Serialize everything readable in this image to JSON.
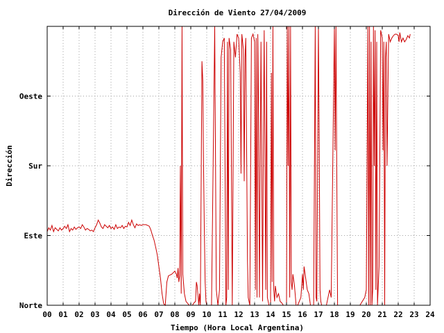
{
  "chart_data": {
    "type": "line",
    "title": "Dirección de Viento 27/04/2009",
    "xlabel": "Tiempo (Hora Local Argentina)",
    "ylabel": "Dirección",
    "xlim": [
      0,
      24
    ],
    "ylim": [
      0,
      360
    ],
    "x_ticks": [
      "00",
      "01",
      "02",
      "03",
      "04",
      "05",
      "06",
      "07",
      "08",
      "09",
      "10",
      "11",
      "12",
      "13",
      "14",
      "15",
      "16",
      "17",
      "18",
      "19",
      "20",
      "21",
      "22",
      "23",
      "24"
    ],
    "y_ticks": [
      {
        "label": "Norte",
        "value": 0
      },
      {
        "label": "Este",
        "value": 90
      },
      {
        "label": "Sur",
        "value": 180
      },
      {
        "label": "Oeste",
        "value": 270
      }
    ],
    "grid": true,
    "colors": {
      "series": "#cc0000",
      "grid": "#a0a0a0",
      "axes": "#000000"
    },
    "series": [
      {
        "points": [
          [
            0.0,
            95
          ],
          [
            0.1,
            100
          ],
          [
            0.2,
            97
          ],
          [
            0.3,
            103
          ],
          [
            0.4,
            95
          ],
          [
            0.5,
            100
          ],
          [
            0.6,
            98
          ],
          [
            0.7,
            96
          ],
          [
            0.8,
            100
          ],
          [
            0.9,
            97
          ],
          [
            1.0,
            99
          ],
          [
            1.1,
            102
          ],
          [
            1.2,
            99
          ],
          [
            1.3,
            104
          ],
          [
            1.4,
            95
          ],
          [
            1.5,
            99
          ],
          [
            1.6,
            97
          ],
          [
            1.7,
            101
          ],
          [
            1.8,
            98
          ],
          [
            1.9,
            100
          ],
          [
            2.0,
            101
          ],
          [
            2.1,
            99
          ],
          [
            2.2,
            104
          ],
          [
            2.3,
            101
          ],
          [
            2.4,
            97
          ],
          [
            2.5,
            99
          ],
          [
            2.6,
            98
          ],
          [
            2.7,
            96
          ],
          [
            2.8,
            97
          ],
          [
            2.9,
            95
          ],
          [
            3.0,
            100
          ],
          [
            3.1,
            104
          ],
          [
            3.2,
            110
          ],
          [
            3.3,
            106
          ],
          [
            3.4,
            101
          ],
          [
            3.5,
            99
          ],
          [
            3.6,
            104
          ],
          [
            3.7,
            102
          ],
          [
            3.8,
            100
          ],
          [
            3.9,
            103
          ],
          [
            4.0,
            99
          ],
          [
            4.1,
            101
          ],
          [
            4.2,
            98
          ],
          [
            4.3,
            104
          ],
          [
            4.4,
            99
          ],
          [
            4.5,
            101
          ],
          [
            4.6,
            100
          ],
          [
            4.7,
            103
          ],
          [
            4.8,
            99
          ],
          [
            4.9,
            102
          ],
          [
            5.0,
            101
          ],
          [
            5.1,
            107
          ],
          [
            5.2,
            103
          ],
          [
            5.3,
            110
          ],
          [
            5.4,
            104
          ],
          [
            5.5,
            100
          ],
          [
            5.6,
            105
          ],
          [
            5.7,
            103
          ],
          [
            5.8,
            104
          ],
          [
            5.9,
            103
          ],
          [
            6.0,
            104
          ],
          [
            6.2,
            104
          ],
          [
            6.4,
            102
          ],
          [
            6.5,
            97
          ],
          [
            6.6,
            90
          ],
          [
            6.7,
            84
          ],
          [
            6.8,
            75
          ],
          [
            6.9,
            65
          ],
          [
            7.0,
            50
          ],
          [
            7.1,
            35
          ],
          [
            7.2,
            15
          ],
          [
            7.3,
            2
          ],
          [
            7.4,
            0
          ],
          [
            7.5,
            30
          ],
          [
            7.6,
            38
          ],
          [
            7.8,
            40
          ],
          [
            8.0,
            44
          ],
          [
            8.1,
            40
          ],
          [
            8.15,
            35
          ],
          [
            8.2,
            48
          ],
          [
            8.25,
            30
          ],
          [
            8.3,
            38
          ],
          [
            8.35,
            180
          ],
          [
            8.4,
            15
          ],
          [
            8.45,
            360
          ],
          [
            8.5,
            40
          ],
          [
            8.6,
            15
          ],
          [
            8.7,
            5
          ],
          [
            8.9,
            0
          ],
          [
            9.0,
            0
          ],
          [
            9.1,
            0
          ],
          [
            9.2,
            3
          ],
          [
            9.3,
            5
          ],
          [
            9.35,
            30
          ],
          [
            9.4,
            25
          ],
          [
            9.5,
            0
          ],
          [
            9.55,
            15
          ],
          [
            9.6,
            0
          ],
          [
            9.7,
            315
          ],
          [
            9.75,
            290
          ],
          [
            9.8,
            180
          ],
          [
            9.85,
            100
          ],
          [
            9.9,
            30
          ],
          [
            9.95,
            5
          ],
          [
            10.0,
            0
          ],
          [
            10.1,
            0
          ],
          [
            10.3,
            0
          ],
          [
            10.5,
            360
          ],
          [
            10.6,
            20
          ],
          [
            10.7,
            0
          ],
          [
            10.8,
            20
          ],
          [
            10.9,
            320
          ],
          [
            11.0,
            340
          ],
          [
            11.1,
            345
          ],
          [
            11.2,
            0
          ],
          [
            11.25,
            10
          ],
          [
            11.3,
            340
          ],
          [
            11.35,
            20
          ],
          [
            11.4,
            345
          ],
          [
            11.5,
            330
          ],
          [
            11.6,
            0
          ],
          [
            11.7,
            340
          ],
          [
            11.8,
            320
          ],
          [
            11.9,
            350
          ],
          [
            12.0,
            345
          ],
          [
            12.1,
            300
          ],
          [
            12.15,
            170
          ],
          [
            12.2,
            350
          ],
          [
            12.3,
            330
          ],
          [
            12.35,
            160
          ],
          [
            12.4,
            320
          ],
          [
            12.45,
            345
          ],
          [
            12.5,
            200
          ],
          [
            12.55,
            60
          ],
          [
            12.6,
            10
          ],
          [
            12.7,
            0
          ],
          [
            12.8,
            345
          ],
          [
            12.9,
            350
          ],
          [
            13.0,
            340
          ],
          [
            13.05,
            20
          ],
          [
            13.1,
            345
          ],
          [
            13.15,
            10
          ],
          [
            13.2,
            350
          ],
          [
            13.25,
            240
          ],
          [
            13.3,
            10
          ],
          [
            13.4,
            340
          ],
          [
            13.5,
            5
          ],
          [
            13.55,
            200
          ],
          [
            13.6,
            355
          ],
          [
            13.7,
            20
          ],
          [
            13.75,
            340
          ],
          [
            13.8,
            10
          ],
          [
            13.9,
            0
          ],
          [
            14.0,
            0
          ],
          [
            14.05,
            300
          ],
          [
            14.1,
            30
          ],
          [
            14.15,
            360
          ],
          [
            14.2,
            20
          ],
          [
            14.25,
            5
          ],
          [
            14.3,
            25
          ],
          [
            14.4,
            10
          ],
          [
            14.5,
            15
          ],
          [
            14.6,
            5
          ],
          [
            14.7,
            3
          ],
          [
            14.8,
            0
          ],
          [
            14.9,
            0
          ],
          [
            15.0,
            0
          ],
          [
            15.05,
            360
          ],
          [
            15.1,
            180
          ],
          [
            15.15,
            360
          ],
          [
            15.2,
            10
          ],
          [
            15.25,
            360
          ],
          [
            15.3,
            30
          ],
          [
            15.35,
            20
          ],
          [
            15.4,
            40
          ],
          [
            15.5,
            25
          ],
          [
            15.6,
            0
          ],
          [
            15.7,
            0
          ],
          [
            15.8,
            5
          ],
          [
            15.9,
            10
          ],
          [
            16.0,
            40
          ],
          [
            16.05,
            20
          ],
          [
            16.1,
            50
          ],
          [
            16.2,
            35
          ],
          [
            16.3,
            20
          ],
          [
            16.4,
            15
          ],
          [
            16.5,
            0
          ],
          [
            16.6,
            0
          ],
          [
            16.7,
            0
          ],
          [
            16.8,
            360
          ],
          [
            16.85,
            10
          ],
          [
            16.9,
            5
          ],
          [
            17.0,
            360
          ],
          [
            17.05,
            200
          ],
          [
            17.1,
            20
          ],
          [
            17.15,
            5
          ],
          [
            17.2,
            0
          ],
          [
            17.3,
            0
          ],
          [
            17.5,
            0
          ],
          [
            17.7,
            20
          ],
          [
            17.8,
            10
          ],
          [
            18.0,
            360
          ],
          [
            18.05,
            200
          ],
          [
            18.1,
            360
          ],
          [
            18.15,
            180
          ],
          [
            18.2,
            0
          ],
          [
            18.3,
            0
          ],
          [
            18.5,
            0
          ],
          [
            18.8,
            0
          ],
          [
            19.0,
            0
          ],
          [
            19.3,
            0
          ],
          [
            19.6,
            0
          ],
          [
            19.9,
            10
          ],
          [
            20.0,
            20
          ],
          [
            20.1,
            360
          ],
          [
            20.15,
            0
          ],
          [
            20.2,
            360
          ],
          [
            20.25,
            0
          ],
          [
            20.3,
            340
          ],
          [
            20.35,
            0
          ],
          [
            20.4,
            20
          ],
          [
            20.45,
            360
          ],
          [
            20.5,
            180
          ],
          [
            20.55,
            355
          ],
          [
            20.6,
            20
          ],
          [
            20.65,
            340
          ],
          [
            20.7,
            0
          ],
          [
            20.8,
            50
          ],
          [
            20.9,
            355
          ],
          [
            21.0,
            345
          ],
          [
            21.05,
            200
          ],
          [
            21.1,
            340
          ],
          [
            21.15,
            0
          ],
          [
            21.2,
            320
          ],
          [
            21.25,
            340
          ],
          [
            21.3,
            180
          ],
          [
            21.4,
            350
          ],
          [
            21.5,
            340
          ],
          [
            21.6,
            345
          ],
          [
            21.7,
            348
          ],
          [
            21.8,
            350
          ],
          [
            21.9,
            350
          ],
          [
            22.0,
            348
          ],
          [
            22.05,
            340
          ],
          [
            22.1,
            352
          ],
          [
            22.2,
            340
          ],
          [
            22.3,
            345
          ],
          [
            22.4,
            340
          ],
          [
            22.5,
            343
          ],
          [
            22.6,
            348
          ],
          [
            22.7,
            345
          ],
          [
            22.75,
            350
          ]
        ]
      }
    ]
  }
}
